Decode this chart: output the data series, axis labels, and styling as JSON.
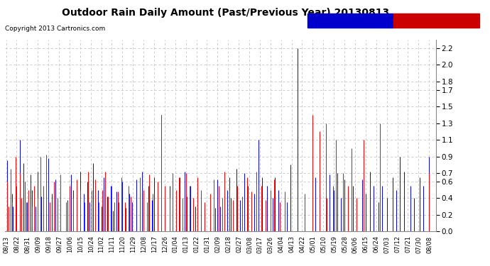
{
  "title": "Outdoor Rain Daily Amount (Past/Previous Year) 20130813",
  "copyright": "Copyright 2013 Cartronics.com",
  "previous_color": "#0000ff",
  "past_color": "#ff0000",
  "background_color": "#ffffff",
  "grid_color": "#c8c8c8",
  "yticks": [
    0.0,
    0.2,
    0.4,
    0.6,
    0.7,
    0.9,
    1.1,
    1.3,
    1.5,
    1.7,
    1.8,
    2.0,
    2.2
  ],
  "ylim": [
    0.0,
    2.3
  ],
  "num_points": 366,
  "x_tick_labels": [
    "08/13",
    "08/22",
    "08/31",
    "09/09",
    "09/18",
    "09/27",
    "10/06",
    "10/15",
    "10/24",
    "11/02",
    "11/11",
    "11/20",
    "11/29",
    "12/08",
    "12/17",
    "12/26",
    "01/04",
    "01/13",
    "01/22",
    "01/31",
    "02/09",
    "02/18",
    "02/27",
    "03/08",
    "03/17",
    "03/26",
    "04/04",
    "04/13",
    "04/22",
    "05/01",
    "05/10",
    "05/19",
    "05/28",
    "06/06",
    "06/15",
    "06/24",
    "07/03",
    "07/12",
    "07/21",
    "07/30",
    "08/08"
  ],
  "x_tick_positions": [
    0,
    9,
    18,
    27,
    36,
    45,
    54,
    63,
    72,
    81,
    90,
    99,
    108,
    117,
    126,
    135,
    144,
    153,
    162,
    171,
    180,
    189,
    198,
    207,
    216,
    225,
    234,
    243,
    252,
    261,
    270,
    279,
    288,
    297,
    306,
    315,
    324,
    333,
    342,
    351,
    360
  ],
  "previous_rain": [
    0.0,
    0.85,
    0.0,
    0.0,
    0.62,
    0.45,
    0.3,
    0.0,
    0.55,
    0.4,
    0.0,
    0.0,
    1.1,
    0.0,
    0.0,
    0.82,
    0.6,
    0.0,
    0.35,
    0.0,
    0.0,
    0.68,
    0.5,
    0.0,
    0.0,
    0.3,
    0.0,
    0.72,
    0.0,
    0.0,
    0.42,
    0.0,
    0.0,
    0.0,
    0.3,
    0.0,
    0.88,
    0.0,
    0.0,
    0.45,
    0.0,
    0.0,
    0.62,
    0.0,
    0.35,
    0.0,
    0.55,
    0.0,
    0.0,
    0.0,
    0.0,
    0.0,
    0.38,
    0.0,
    0.0,
    0.68,
    0.0,
    0.5,
    0.0,
    0.0,
    0.38,
    0.0,
    0.0,
    0.72,
    0.0,
    0.0,
    0.45,
    0.0,
    0.0,
    0.6,
    0.0,
    0.35,
    0.0,
    0.0,
    0.82,
    0.0,
    0.0,
    0.0,
    0.5,
    0.0,
    0.0,
    0.3,
    0.0,
    0.65,
    0.0,
    0.0,
    0.42,
    0.0,
    0.0,
    0.55,
    0.0,
    0.25,
    0.0,
    0.0,
    0.48,
    0.0,
    0.35,
    0.0,
    0.0,
    0.6,
    0.0,
    0.0,
    0.28,
    0.0,
    0.0,
    0.45,
    0.0,
    0.35,
    0.0,
    0.0,
    0.0,
    0.62,
    0.0,
    0.0,
    0.48,
    0.0,
    0.72,
    0.0,
    0.0,
    0.0,
    0.0,
    0.55,
    0.0,
    0.0,
    0.38,
    0.0,
    0.65,
    0.0,
    0.0,
    0.3,
    0.0,
    0.0,
    1.4,
    0.0,
    0.0,
    0.38,
    0.0,
    0.0,
    0.0,
    0.55,
    0.0,
    0.0,
    0.62,
    0.0,
    0.0,
    0.35,
    0.0,
    0.0,
    0.65,
    0.0,
    0.0,
    0.0,
    0.72,
    0.0,
    0.42,
    0.0,
    0.0,
    0.55,
    0.0,
    0.0,
    0.0,
    0.3,
    0.0,
    0.0,
    0.0,
    0.0,
    0.35,
    0.0,
    0.0,
    0.32,
    0.0,
    0.0,
    0.0,
    0.0,
    0.0,
    0.0,
    0.0,
    0.0,
    0.28,
    0.0,
    0.62,
    0.0,
    0.3,
    0.0,
    0.0,
    0.0,
    0.0,
    0.0,
    0.5,
    0.0,
    0.65,
    0.4,
    0.0,
    0.0,
    0.0,
    0.0,
    0.75,
    0.0,
    0.0,
    0.38,
    0.0,
    0.0,
    0.0,
    0.7,
    0.0,
    0.0,
    0.55,
    0.0,
    0.0,
    0.0,
    0.0,
    0.45,
    0.0,
    0.0,
    0.0,
    1.1,
    0.0,
    0.0,
    0.65,
    0.0,
    0.0,
    0.0,
    0.55,
    0.0,
    0.0,
    0.0,
    0.0,
    0.4,
    0.0,
    0.65,
    0.0,
    0.0,
    0.5,
    0.0,
    0.0,
    0.0,
    0.0,
    0.0,
    0.0,
    0.35,
    0.0,
    0.0,
    0.8,
    0.0,
    0.0,
    0.0,
    0.0,
    0.0,
    2.2,
    0.0,
    0.0,
    0.0,
    0.0,
    0.0,
    0.0,
    0.0,
    0.0,
    0.0,
    0.0,
    0.0,
    0.0,
    0.0,
    0.0,
    0.65,
    0.0,
    0.0,
    0.0,
    0.55,
    0.0,
    0.0,
    0.0,
    0.0,
    0.3,
    0.0,
    0.0,
    0.68,
    0.0,
    0.0,
    0.0,
    0.5,
    0.0,
    0.0,
    0.7,
    0.0,
    0.0,
    0.4,
    0.0,
    0.0,
    0.62,
    0.0,
    0.0,
    0.48,
    0.0,
    0.0,
    0.0,
    0.55,
    0.0,
    0.0,
    0.38,
    0.0,
    0.0,
    0.0,
    0.0,
    0.62,
    0.0,
    0.0,
    0.45,
    0.0,
    0.0,
    0.0,
    0.72,
    0.0,
    0.0,
    0.55,
    0.0,
    0.0,
    0.0,
    0.35,
    0.0,
    0.0,
    0.55,
    0.0,
    0.0,
    0.0,
    0.4,
    0.0,
    0.0,
    0.0,
    0.0,
    0.65,
    0.0,
    0.0,
    0.5,
    0.0,
    0.0,
    0.9,
    0.0,
    0.0,
    0.0,
    0.72,
    0.0,
    0.0,
    0.0,
    0.0,
    0.55,
    0.0,
    0.0,
    0.4,
    0.0,
    0.0,
    0.0,
    0.0,
    0.65,
    0.0,
    0.0,
    0.55,
    0.0,
    0.0,
    0.0,
    0.0,
    0.9,
    0.0,
    0.0,
    0.0,
    0.0,
    0.0
  ],
  "past_rain": [
    0.0,
    0.6,
    0.3,
    0.0,
    0.75,
    0.35,
    0.0,
    0.0,
    0.9,
    0.55,
    0.0,
    0.0,
    0.7,
    0.4,
    0.0,
    0.0,
    0.6,
    0.35,
    0.0,
    0.5,
    0.0,
    0.0,
    0.3,
    0.0,
    0.55,
    0.0,
    0.0,
    0.4,
    0.0,
    0.9,
    0.0,
    0.0,
    0.55,
    0.0,
    0.92,
    0.0,
    0.0,
    0.35,
    0.0,
    0.0,
    0.0,
    0.6,
    0.0,
    0.0,
    0.4,
    0.0,
    0.68,
    0.0,
    0.0,
    0.0,
    0.0,
    0.35,
    0.0,
    0.0,
    0.55,
    0.0,
    0.0,
    0.4,
    0.0,
    0.0,
    0.62,
    0.0,
    0.0,
    0.5,
    0.0,
    0.0,
    0.0,
    0.35,
    0.0,
    0.0,
    0.72,
    0.0,
    0.0,
    0.5,
    0.0,
    0.0,
    0.62,
    0.0,
    0.0,
    0.35,
    0.0,
    0.0,
    0.5,
    0.0,
    0.72,
    0.0,
    0.0,
    0.42,
    0.0,
    0.0,
    0.55,
    0.0,
    0.35,
    0.0,
    0.0,
    0.48,
    0.0,
    0.0,
    0.65,
    0.0,
    0.0,
    0.35,
    0.0,
    0.0,
    0.55,
    0.0,
    0.42,
    0.0,
    0.0,
    0.0,
    0.0,
    0.0,
    0.0,
    0.0,
    0.65,
    0.0,
    0.0,
    0.5,
    0.0,
    0.0,
    0.35,
    0.0,
    0.68,
    0.0,
    0.0,
    0.45,
    0.0,
    0.0,
    0.0,
    0.6,
    0.0,
    0.0,
    1.4,
    0.0,
    0.0,
    0.55,
    0.0,
    0.0,
    0.0,
    0.4,
    0.0,
    0.0,
    0.7,
    0.0,
    0.0,
    0.5,
    0.0,
    0.65,
    0.0,
    0.0,
    0.4,
    0.0,
    0.0,
    0.7,
    0.0,
    0.0,
    0.55,
    0.0,
    0.0,
    0.4,
    0.0,
    0.0,
    0.0,
    0.65,
    0.0,
    0.0,
    0.5,
    0.0,
    0.0,
    0.35,
    0.0,
    0.0,
    0.0,
    0.0,
    0.45,
    0.0,
    0.0,
    0.62,
    0.0,
    0.0,
    0.0,
    0.55,
    0.0,
    0.0,
    0.4,
    0.0,
    0.72,
    0.0,
    0.0,
    0.0,
    0.5,
    0.0,
    0.0,
    0.38,
    0.0,
    0.0,
    0.0,
    0.55,
    0.0,
    0.0,
    0.0,
    0.42,
    0.0,
    0.0,
    0.0,
    0.65,
    0.0,
    0.0,
    0.0,
    0.48,
    0.0,
    0.0,
    0.0,
    0.72,
    0.0,
    0.0,
    0.0,
    0.55,
    0.0,
    0.0,
    0.0,
    0.38,
    0.0,
    0.0,
    0.0,
    0.5,
    0.0,
    0.0,
    0.62,
    0.0,
    0.0,
    0.0,
    0.0,
    0.35,
    0.0,
    0.0,
    0.0,
    0.48,
    0.0,
    0.0,
    0.0,
    0.0,
    0.0,
    0.0,
    0.0,
    0.0,
    0.0,
    0.0,
    0.0,
    0.0,
    0.0,
    0.0,
    0.0,
    0.0,
    0.45,
    0.0,
    0.0,
    0.0,
    0.0,
    0.0,
    0.0,
    1.4,
    0.0,
    0.0,
    0.0,
    0.0,
    0.0,
    1.2,
    0.0,
    0.0,
    0.0,
    0.0,
    1.3,
    0.4,
    0.0,
    0.0,
    0.0,
    0.0,
    0.55,
    0.0,
    0.0,
    1.1,
    0.0,
    0.0,
    0.0,
    0.0,
    0.0,
    0.7,
    0.0,
    0.0,
    0.0,
    0.55,
    0.0,
    0.0,
    1.0,
    0.0,
    0.0,
    0.0,
    0.4,
    0.0,
    0.0,
    0.0,
    0.0,
    0.0,
    1.1,
    0.0,
    0.0,
    0.0,
    0.0,
    0.0,
    0.0,
    0.0,
    0.0,
    0.0,
    0.0,
    0.0,
    0.0,
    0.0,
    1.3,
    0.0,
    0.0,
    0.0,
    0.0,
    0.0,
    0.0,
    0.0,
    0.0,
    0.0,
    0.0,
    0.0,
    0.0,
    0.0,
    0.0,
    0.0,
    0.0,
    0.0,
    0.0,
    0.0,
    0.0,
    0.0,
    0.0,
    0.0,
    0.0,
    0.0,
    0.0,
    0.0,
    0.0,
    0.0,
    0.0,
    0.0,
    0.0,
    0.0,
    0.0,
    0.0,
    0.0,
    0.0,
    0.0,
    0.0,
    0.0,
    0.0,
    0.7,
    0.0,
    0.0,
    0.0,
    0.0,
    0.0
  ]
}
